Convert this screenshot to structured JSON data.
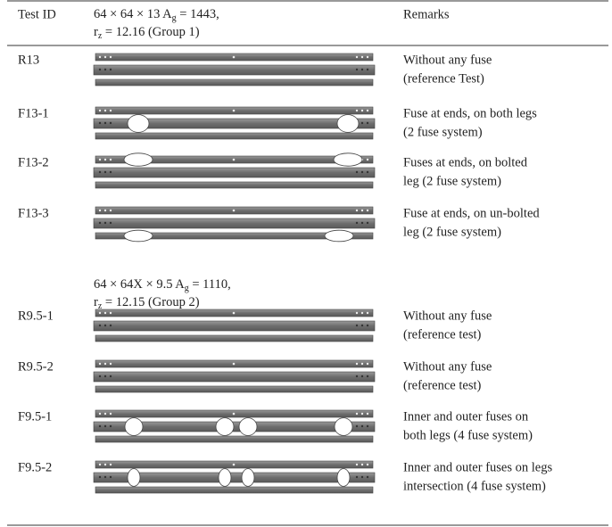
{
  "header": {
    "test_id": "Test ID",
    "group1": {
      "line1": {
        "text": "64 × 64 × 13 A",
        "sub": "g",
        "rest": " = 1443,"
      },
      "line2": {
        "text": "r",
        "sub": "z",
        "rest": " = 12.16 (Group 1)"
      }
    },
    "remarks": "Remarks"
  },
  "rows": [
    {
      "id": "R13",
      "remarks": [
        "Without any fuse",
        "(reference Test)"
      ]
    },
    {
      "id": "F13-1",
      "remarks": [
        "Fuse at ends, on both legs",
        "(2 fuse system)"
      ]
    },
    {
      "id": "F13-2",
      "remarks": [
        "Fuses at ends, on bolted",
        "leg (2 fuse system)"
      ]
    },
    {
      "id": "F13-3",
      "remarks": [
        "Fuse at ends, on un-bolted",
        "leg (2 fuse system)"
      ]
    }
  ],
  "group2": {
    "line1": {
      "text": "64 × 64X × 9.5 A",
      "sub": "g",
      "rest": " = 1110,"
    },
    "line2": {
      "text": "r",
      "sub": "z",
      "rest": " = 12.15 (Group 2)"
    }
  },
  "rows2": [
    {
      "id": "R9.5-1",
      "remarks": [
        "Without any fuse",
        "(reference test)"
      ]
    },
    {
      "id": "R9.5-2",
      "remarks": [
        "Without any fuse",
        "(reference test)"
      ]
    },
    {
      "id": "F9.5-1",
      "remarks": [
        "Inner and outer fuses on",
        "both legs (4 fuse system)"
      ]
    },
    {
      "id": "F9.5-2",
      "remarks": [
        "Inner and outer fuses on legs",
        "intersection (4 fuse system)"
      ]
    }
  ]
}
